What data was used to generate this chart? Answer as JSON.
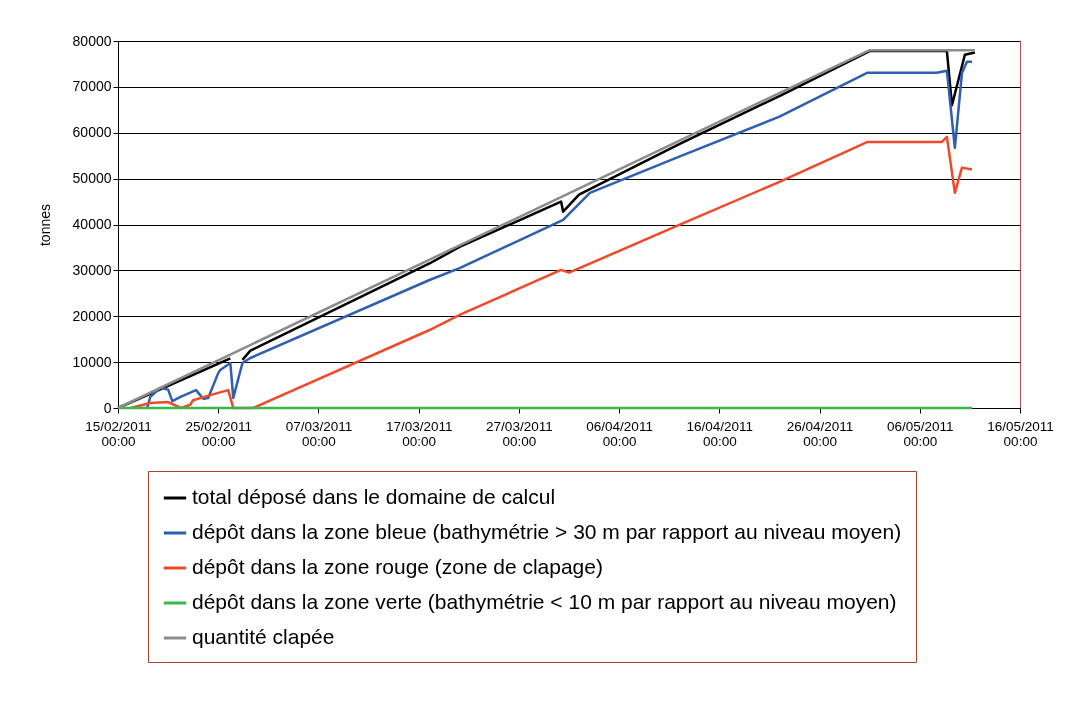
{
  "chart_data": {
    "type": "line",
    "ylabel": "tonnes",
    "legend": "bottom",
    "grid": "y",
    "marker": "none",
    "line_style": "solid",
    "xlim": [
      "2011-02-15",
      "2011-05-16"
    ],
    "xticks": [
      {
        "value": "2011-02-15",
        "label": "15/02/2011 00:00"
      },
      {
        "value": "2011-02-25",
        "label": "25/02/2011 00:00"
      },
      {
        "value": "2011-03-07",
        "label": "07/03/2011 00:00"
      },
      {
        "value": "2011-03-17",
        "label": "17/03/2011 00:00"
      },
      {
        "value": "2011-03-27",
        "label": "27/03/2011 00:00"
      },
      {
        "value": "2011-04-06",
        "label": "06/04/2011 00:00"
      },
      {
        "value": "2011-04-16",
        "label": "16/04/2011 00:00"
      },
      {
        "value": "2011-04-26",
        "label": "26/04/2011 00:00"
      },
      {
        "value": "2011-05-06",
        "label": "06/05/2011 00:00"
      },
      {
        "value": "2011-05-16",
        "label": "16/05/2011 00:00"
      }
    ],
    "ylim": [
      0,
      80000
    ],
    "yticks": [
      0,
      10000,
      20000,
      30000,
      40000,
      50000,
      60000,
      70000,
      80000
    ],
    "series": [
      {
        "name": "total déposé dans le domaine de calcul",
        "color": "#000000",
        "x": [
          "2011-02-15",
          "2011-02-26T05:00",
          "2011-02-26T12:00",
          "2011-02-27T10:00",
          "2011-02-28T05:00",
          "2011-03-18T02:00",
          "2011-03-21T02:00",
          "2011-03-31T05:00",
          "2011-03-31T10:00",
          "2011-04-02",
          "2011-04-12",
          "2011-04-22",
          "2011-05-01",
          "2011-05-08T17:00",
          "2011-05-09T05:00",
          "2011-05-10T12:00",
          "2011-05-11T12:00"
        ],
        "values": [
          0,
          10800,
          null,
          10500,
          12500,
          31500,
          35100,
          45000,
          42800,
          46500,
          57500,
          68000,
          77800,
          77800,
          66000,
          77000,
          77500
        ]
      },
      {
        "name": "dépôt dans la zone bleue (bathymétrie > 30 m par rapport au niveau moyen)",
        "color": "#2e5fb0",
        "x": [
          "2011-02-17T22:00",
          "2011-02-18T05:00",
          "2011-02-19T05:00",
          "2011-02-20",
          "2011-02-20T10:00",
          "2011-02-21T07:00",
          "2011-02-22T19:00",
          "2011-02-23T12:00",
          "2011-02-24",
          "2011-02-25",
          "2011-02-25T05:00",
          "2011-02-26T05:00",
          "2011-02-26T12:00",
          "2011-02-27T10:00",
          "2011-02-28T05:00",
          "2011-03-18T02:00",
          "2011-03-21T02:00",
          "2011-03-31T10:00",
          "2011-04-03T02:00",
          "2011-04-12",
          "2011-04-22",
          "2011-04-30T19:00",
          "2011-05-07T17:00",
          "2011-05-08T17:00",
          "2011-05-09T12:00",
          "2011-05-10T05:00",
          "2011-05-10T17:00",
          "2011-05-11T05:00"
        ],
        "values": [
          0,
          2400,
          4400,
          4000,
          1500,
          2500,
          3900,
          2000,
          2200,
          7600,
          8300,
          9800,
          2200,
          9800,
          10900,
          27900,
          30500,
          41000,
          46900,
          54800,
          63500,
          73100,
          73100,
          73500,
          56700,
          73000,
          75500,
          75500
        ]
      },
      {
        "name": "dépôt dans la zone rouge (zone de clapage)",
        "color": "#f04a2a",
        "x": [
          "2011-02-16T07:00",
          "2011-02-18T05:00",
          "2011-02-20",
          "2011-02-21T07:00",
          "2011-02-22T05:00",
          "2011-02-22T12:00",
          "2011-02-24T05:00",
          "2011-02-26",
          "2011-02-26T12:00",
          "2011-02-28T12:00",
          "2011-03-18T02:00",
          "2011-03-21T02:00",
          "2011-03-31T05:00",
          "2011-04-01",
          "2011-04-12",
          "2011-04-22",
          "2011-04-30T19:00",
          "2011-05-08T05:00",
          "2011-05-08T17:00",
          "2011-05-09T12:00",
          "2011-05-10T05:00",
          "2011-05-11T05:00"
        ],
        "values": [
          0,
          1100,
          1300,
          0,
          700,
          1700,
          2800,
          3900,
          0,
          0,
          17000,
          20300,
          30100,
          29500,
          39900,
          49300,
          58000,
          58000,
          59100,
          46900,
          52400,
          52000
        ]
      },
      {
        "name": "dépôt dans la zone verte (bathymétrie < 10 m par rapport au niveau moyen)",
        "color": "#3cb54a",
        "x": [
          "2011-02-15",
          "2011-05-11T05:00"
        ],
        "values": [
          0,
          0
        ]
      },
      {
        "name": "quantité clapée",
        "color": "#8c8c8c",
        "x": [
          "2011-02-15",
          "2011-05-01",
          "2011-05-11T12:00"
        ],
        "values": [
          0,
          78000,
          78000
        ]
      }
    ]
  }
}
